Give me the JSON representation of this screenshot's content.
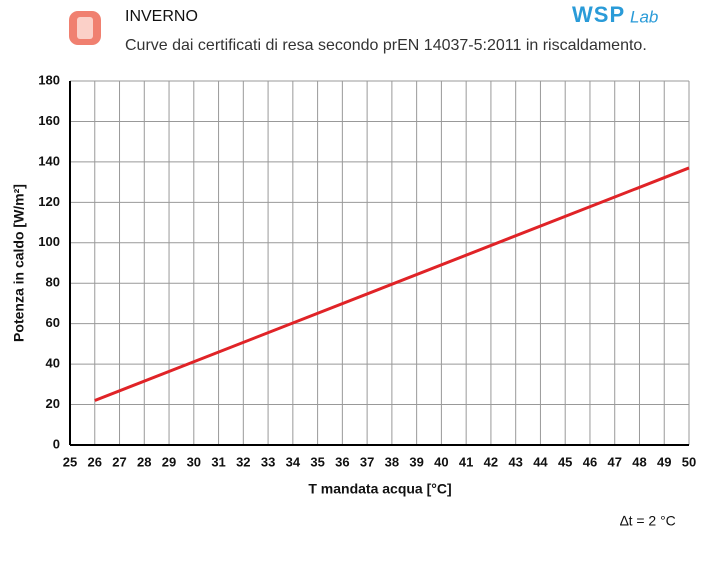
{
  "header": {
    "title": "INVERNO",
    "subtitle": "Curve dai certificati di resa secondo prEN 14037-5:2011 in riscaldamento.",
    "logo": "WSP",
    "logo_suffix": "Lab"
  },
  "chart_data": {
    "type": "line",
    "x_label": "T mandata acqua [°C]",
    "y_label": "Potenza in caldo [W/m²]",
    "annotation": "∆t = 2 °C",
    "x": [
      26,
      50
    ],
    "values": [
      22,
      137
    ],
    "color": "#e02327",
    "xlim": [
      25,
      50
    ],
    "xticks": [
      25,
      26,
      27,
      28,
      29,
      30,
      31,
      32,
      33,
      34,
      35,
      36,
      37,
      38,
      39,
      40,
      41,
      42,
      43,
      44,
      45,
      46,
      47,
      48,
      49,
      50
    ],
    "ylim": [
      0,
      180
    ],
    "yticks": [
      0,
      20,
      40,
      60,
      80,
      100,
      120,
      140,
      160,
      180
    ],
    "grid": true
  }
}
